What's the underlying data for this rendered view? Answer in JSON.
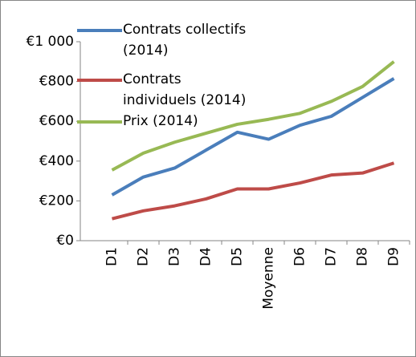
{
  "chart_data": {
    "type": "line",
    "categories": [
      "D1",
      "D2",
      "D3",
      "D4",
      "D5",
      "Moyenne",
      "D6",
      "D7",
      "D8",
      "D9"
    ],
    "series": [
      {
        "name": "Contrats collectifs (2014)",
        "color": "#4a7ebb",
        "values": [
          230,
          320,
          365,
          455,
          545,
          510,
          580,
          625,
          720,
          815
        ]
      },
      {
        "name": "Contrats individuels (2014)",
        "color": "#be4b48",
        "values": [
          110,
          150,
          175,
          210,
          260,
          260,
          290,
          330,
          340,
          390
        ]
      },
      {
        "name": "Prix (2014)",
        "color": "#98b954",
        "values": [
          355,
          440,
          495,
          540,
          585,
          610,
          640,
          700,
          775,
          900
        ]
      }
    ],
    "ylim": [
      0,
      1000
    ],
    "yticks": [
      {
        "value": 0,
        "label": "€0"
      },
      {
        "value": 200,
        "label": "€200"
      },
      {
        "value": 400,
        "label": "€400"
      },
      {
        "value": 600,
        "label": "€600"
      },
      {
        "value": 800,
        "label": "€800"
      },
      {
        "value": 1000,
        "label": "€1 000"
      }
    ],
    "grid": false,
    "legend": "upper left"
  }
}
